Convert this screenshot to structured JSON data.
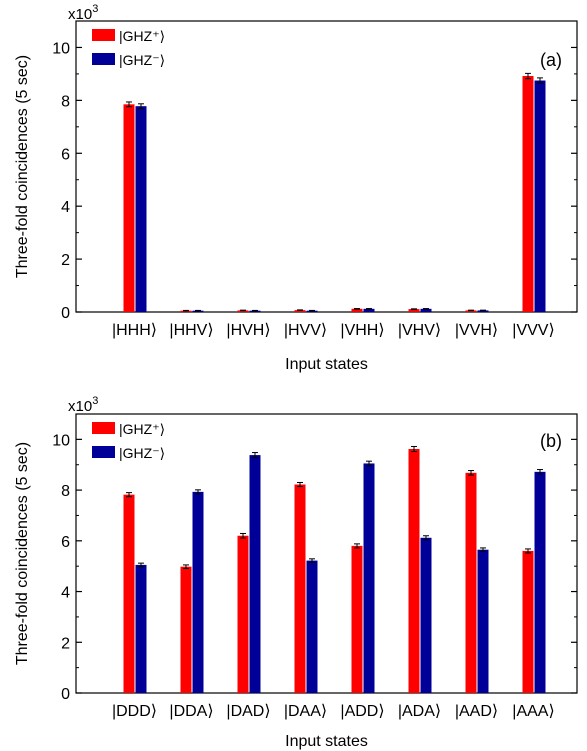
{
  "chart_data": [
    {
      "type": "bar",
      "panel_label": "(a)",
      "exponent_label": "x10",
      "exponent_power": "3",
      "categories": [
        "|HHH⟩",
        "|HHV⟩",
        "|HVH⟩",
        "|HVV⟩",
        "|VHH⟩",
        "|VHV⟩",
        "|VVH⟩",
        "|VVV⟩"
      ],
      "series": [
        {
          "name": "|GHZ⁺⟩",
          "color": "#ff0000",
          "values": [
            7.85,
            0.05,
            0.06,
            0.07,
            0.12,
            0.11,
            0.06,
            8.92
          ],
          "errors": [
            0.09,
            0.01,
            0.01,
            0.01,
            0.01,
            0.01,
            0.01,
            0.1
          ]
        },
        {
          "name": "|GHZ⁻⟩",
          "color": "#000099",
          "values": [
            7.78,
            0.05,
            0.05,
            0.05,
            0.12,
            0.12,
            0.06,
            8.75
          ],
          "errors": [
            0.09,
            0.01,
            0.01,
            0.01,
            0.01,
            0.01,
            0.01,
            0.1
          ]
        }
      ],
      "ylabel": "Three-fold coincidences (5 sec)",
      "xlabel": "Input states",
      "ylim": [
        0,
        11
      ],
      "yticks": [
        0,
        2,
        4,
        6,
        8,
        10
      ],
      "legend_position": "top-left",
      "grid": false
    },
    {
      "type": "bar",
      "panel_label": "(b)",
      "exponent_label": "x10",
      "exponent_power": "3",
      "categories": [
        "|DDD⟩",
        "|DDA⟩",
        "|DAD⟩",
        "|DAA⟩",
        "|ADD⟩",
        "|ADA⟩",
        "|AAD⟩",
        "|AAA⟩"
      ],
      "series": [
        {
          "name": "|GHZ⁺⟩",
          "color": "#ff0000",
          "values": [
            7.82,
            4.98,
            6.2,
            8.22,
            5.8,
            9.62,
            8.68,
            5.6
          ],
          "errors": [
            0.08,
            0.07,
            0.09,
            0.08,
            0.08,
            0.1,
            0.09,
            0.08
          ]
        },
        {
          "name": "|GHZ⁻⟩",
          "color": "#000099",
          "values": [
            5.05,
            7.93,
            9.38,
            5.22,
            9.05,
            6.12,
            5.65,
            8.72
          ],
          "errors": [
            0.07,
            0.08,
            0.1,
            0.07,
            0.09,
            0.08,
            0.07,
            0.09
          ]
        }
      ],
      "ylabel": "Three-fold coincidences (5 sec)",
      "xlabel": "Input states",
      "ylim": [
        0,
        11
      ],
      "yticks": [
        0,
        2,
        4,
        6,
        8,
        10
      ],
      "legend_position": "top-left",
      "grid": false
    }
  ]
}
